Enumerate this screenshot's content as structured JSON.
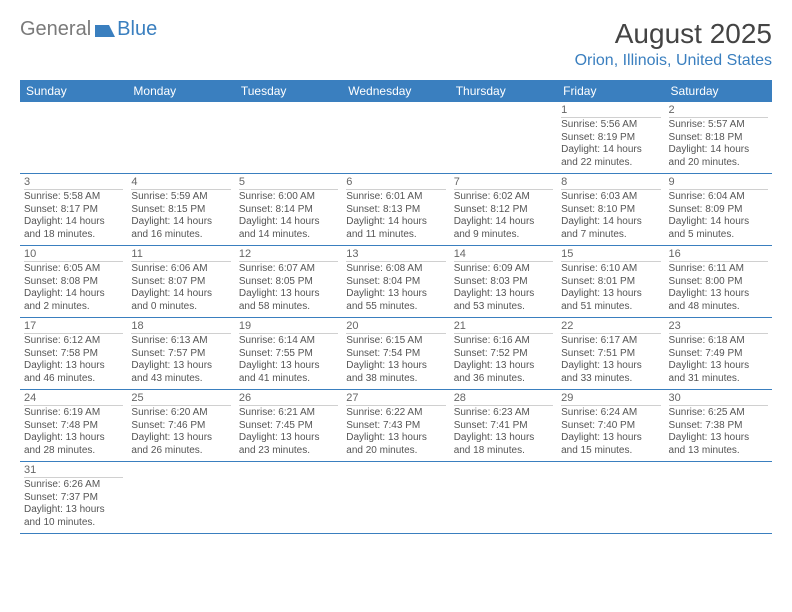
{
  "logo": {
    "text1": "General",
    "text2": "Blue"
  },
  "title": "August 2025",
  "location": "Orion, Illinois, United States",
  "colors": {
    "header_bg": "#3a7fbf",
    "header_fg": "#ffffff",
    "row_border": "#3a7fbf",
    "day_divider": "#d0d0d0",
    "text": "#555555",
    "title": "#444444",
    "location": "#3a7fbf"
  },
  "fonts": {
    "title_size": 28,
    "location_size": 16,
    "header_size": 12,
    "daynum_size": 11,
    "info_size": 10
  },
  "weekdays": [
    "Sunday",
    "Monday",
    "Tuesday",
    "Wednesday",
    "Thursday",
    "Friday",
    "Saturday"
  ],
  "first_weekday_index": 5,
  "days": [
    {
      "n": 1,
      "sunrise": "5:56 AM",
      "sunset": "8:19 PM",
      "daylight": "14 hours and 22 minutes."
    },
    {
      "n": 2,
      "sunrise": "5:57 AM",
      "sunset": "8:18 PM",
      "daylight": "14 hours and 20 minutes."
    },
    {
      "n": 3,
      "sunrise": "5:58 AM",
      "sunset": "8:17 PM",
      "daylight": "14 hours and 18 minutes."
    },
    {
      "n": 4,
      "sunrise": "5:59 AM",
      "sunset": "8:15 PM",
      "daylight": "14 hours and 16 minutes."
    },
    {
      "n": 5,
      "sunrise": "6:00 AM",
      "sunset": "8:14 PM",
      "daylight": "14 hours and 14 minutes."
    },
    {
      "n": 6,
      "sunrise": "6:01 AM",
      "sunset": "8:13 PM",
      "daylight": "14 hours and 11 minutes."
    },
    {
      "n": 7,
      "sunrise": "6:02 AM",
      "sunset": "8:12 PM",
      "daylight": "14 hours and 9 minutes."
    },
    {
      "n": 8,
      "sunrise": "6:03 AM",
      "sunset": "8:10 PM",
      "daylight": "14 hours and 7 minutes."
    },
    {
      "n": 9,
      "sunrise": "6:04 AM",
      "sunset": "8:09 PM",
      "daylight": "14 hours and 5 minutes."
    },
    {
      "n": 10,
      "sunrise": "6:05 AM",
      "sunset": "8:08 PM",
      "daylight": "14 hours and 2 minutes."
    },
    {
      "n": 11,
      "sunrise": "6:06 AM",
      "sunset": "8:07 PM",
      "daylight": "14 hours and 0 minutes."
    },
    {
      "n": 12,
      "sunrise": "6:07 AM",
      "sunset": "8:05 PM",
      "daylight": "13 hours and 58 minutes."
    },
    {
      "n": 13,
      "sunrise": "6:08 AM",
      "sunset": "8:04 PM",
      "daylight": "13 hours and 55 minutes."
    },
    {
      "n": 14,
      "sunrise": "6:09 AM",
      "sunset": "8:03 PM",
      "daylight": "13 hours and 53 minutes."
    },
    {
      "n": 15,
      "sunrise": "6:10 AM",
      "sunset": "8:01 PM",
      "daylight": "13 hours and 51 minutes."
    },
    {
      "n": 16,
      "sunrise": "6:11 AM",
      "sunset": "8:00 PM",
      "daylight": "13 hours and 48 minutes."
    },
    {
      "n": 17,
      "sunrise": "6:12 AM",
      "sunset": "7:58 PM",
      "daylight": "13 hours and 46 minutes."
    },
    {
      "n": 18,
      "sunrise": "6:13 AM",
      "sunset": "7:57 PM",
      "daylight": "13 hours and 43 minutes."
    },
    {
      "n": 19,
      "sunrise": "6:14 AM",
      "sunset": "7:55 PM",
      "daylight": "13 hours and 41 minutes."
    },
    {
      "n": 20,
      "sunrise": "6:15 AM",
      "sunset": "7:54 PM",
      "daylight": "13 hours and 38 minutes."
    },
    {
      "n": 21,
      "sunrise": "6:16 AM",
      "sunset": "7:52 PM",
      "daylight": "13 hours and 36 minutes."
    },
    {
      "n": 22,
      "sunrise": "6:17 AM",
      "sunset": "7:51 PM",
      "daylight": "13 hours and 33 minutes."
    },
    {
      "n": 23,
      "sunrise": "6:18 AM",
      "sunset": "7:49 PM",
      "daylight": "13 hours and 31 minutes."
    },
    {
      "n": 24,
      "sunrise": "6:19 AM",
      "sunset": "7:48 PM",
      "daylight": "13 hours and 28 minutes."
    },
    {
      "n": 25,
      "sunrise": "6:20 AM",
      "sunset": "7:46 PM",
      "daylight": "13 hours and 26 minutes."
    },
    {
      "n": 26,
      "sunrise": "6:21 AM",
      "sunset": "7:45 PM",
      "daylight": "13 hours and 23 minutes."
    },
    {
      "n": 27,
      "sunrise": "6:22 AM",
      "sunset": "7:43 PM",
      "daylight": "13 hours and 20 minutes."
    },
    {
      "n": 28,
      "sunrise": "6:23 AM",
      "sunset": "7:41 PM",
      "daylight": "13 hours and 18 minutes."
    },
    {
      "n": 29,
      "sunrise": "6:24 AM",
      "sunset": "7:40 PM",
      "daylight": "13 hours and 15 minutes."
    },
    {
      "n": 30,
      "sunrise": "6:25 AM",
      "sunset": "7:38 PM",
      "daylight": "13 hours and 13 minutes."
    },
    {
      "n": 31,
      "sunrise": "6:26 AM",
      "sunset": "7:37 PM",
      "daylight": "13 hours and 10 minutes."
    }
  ],
  "labels": {
    "sunrise": "Sunrise: ",
    "sunset": "Sunset: ",
    "daylight": "Daylight: "
  }
}
